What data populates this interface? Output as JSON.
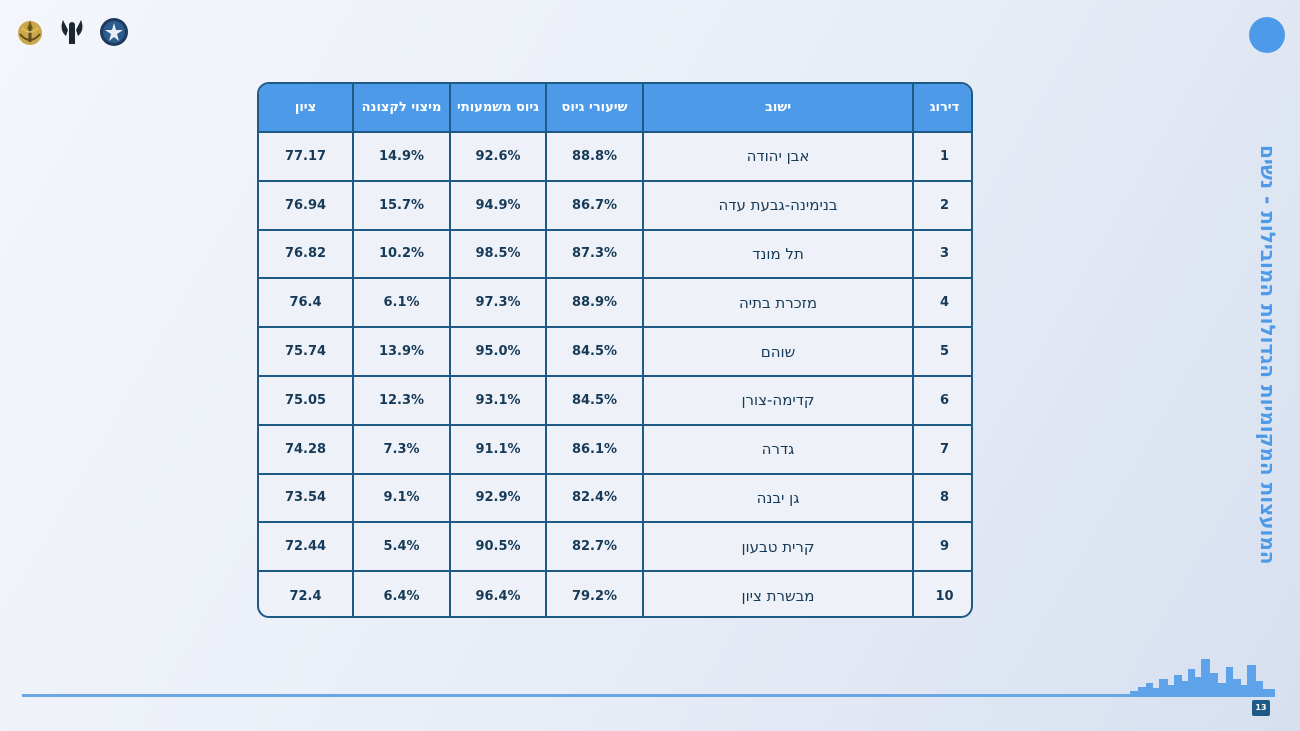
{
  "page": {
    "title": "המועצות המקומיות הגדולות המובילות - נשים",
    "page_number": "13"
  },
  "colors": {
    "header_blue": "#4d9be8",
    "border_navy": "#1e5a86",
    "text_navy": "#173a58"
  },
  "logos": [
    "idf-emblem-icon",
    "intelligence-corps-icon",
    "unit-emblem-icon"
  ],
  "table": {
    "headers": {
      "rank": "דירוג",
      "town": "ישוב",
      "enlistment_rate": "שיעורי גיוס",
      "meaningful_enlistment": "גיוס משמעותי",
      "officer_potential": "מיצוי לקצונה",
      "score": "ציון"
    },
    "rows": [
      {
        "rank": "1",
        "town": "אבן יהודה",
        "enlistment_rate": "88.8%",
        "meaningful_enlistment": "92.6%",
        "officer_potential": "14.9%",
        "score": "77.17"
      },
      {
        "rank": "2",
        "town": "בנימינה-גבעת עדה",
        "enlistment_rate": "86.7%",
        "meaningful_enlistment": "94.9%",
        "officer_potential": "15.7%",
        "score": "76.94"
      },
      {
        "rank": "3",
        "town": "תל מונד",
        "enlistment_rate": "87.3%",
        "meaningful_enlistment": "98.5%",
        "officer_potential": "10.2%",
        "score": "76.82"
      },
      {
        "rank": "4",
        "town": "מזכרת בתיה",
        "enlistment_rate": "88.9%",
        "meaningful_enlistment": "97.3%",
        "officer_potential": "6.1%",
        "score": "76.4"
      },
      {
        "rank": "5",
        "town": "שוהם",
        "enlistment_rate": "84.5%",
        "meaningful_enlistment": "95.0%",
        "officer_potential": "13.9%",
        "score": "75.74"
      },
      {
        "rank": "6",
        "town": "קדימה-צורן",
        "enlistment_rate": "84.5%",
        "meaningful_enlistment": "93.1%",
        "officer_potential": "12.3%",
        "score": "75.05"
      },
      {
        "rank": "7",
        "town": "גדרה",
        "enlistment_rate": "86.1%",
        "meaningful_enlistment": "91.1%",
        "officer_potential": "7.3%",
        "score": "74.28"
      },
      {
        "rank": "8",
        "town": "גן יבנה",
        "enlistment_rate": "82.4%",
        "meaningful_enlistment": "92.9%",
        "officer_potential": "9.1%",
        "score": "73.54"
      },
      {
        "rank": "9",
        "town": "קרית טבעון",
        "enlistment_rate": "82.7%",
        "meaningful_enlistment": "90.5%",
        "officer_potential": "5.4%",
        "score": "72.44"
      },
      {
        "rank": "10",
        "town": "מבשרת ציון",
        "enlistment_rate": "79.2%",
        "meaningful_enlistment": "96.4%",
        "officer_potential": "6.4%",
        "score": "72.4"
      }
    ]
  }
}
